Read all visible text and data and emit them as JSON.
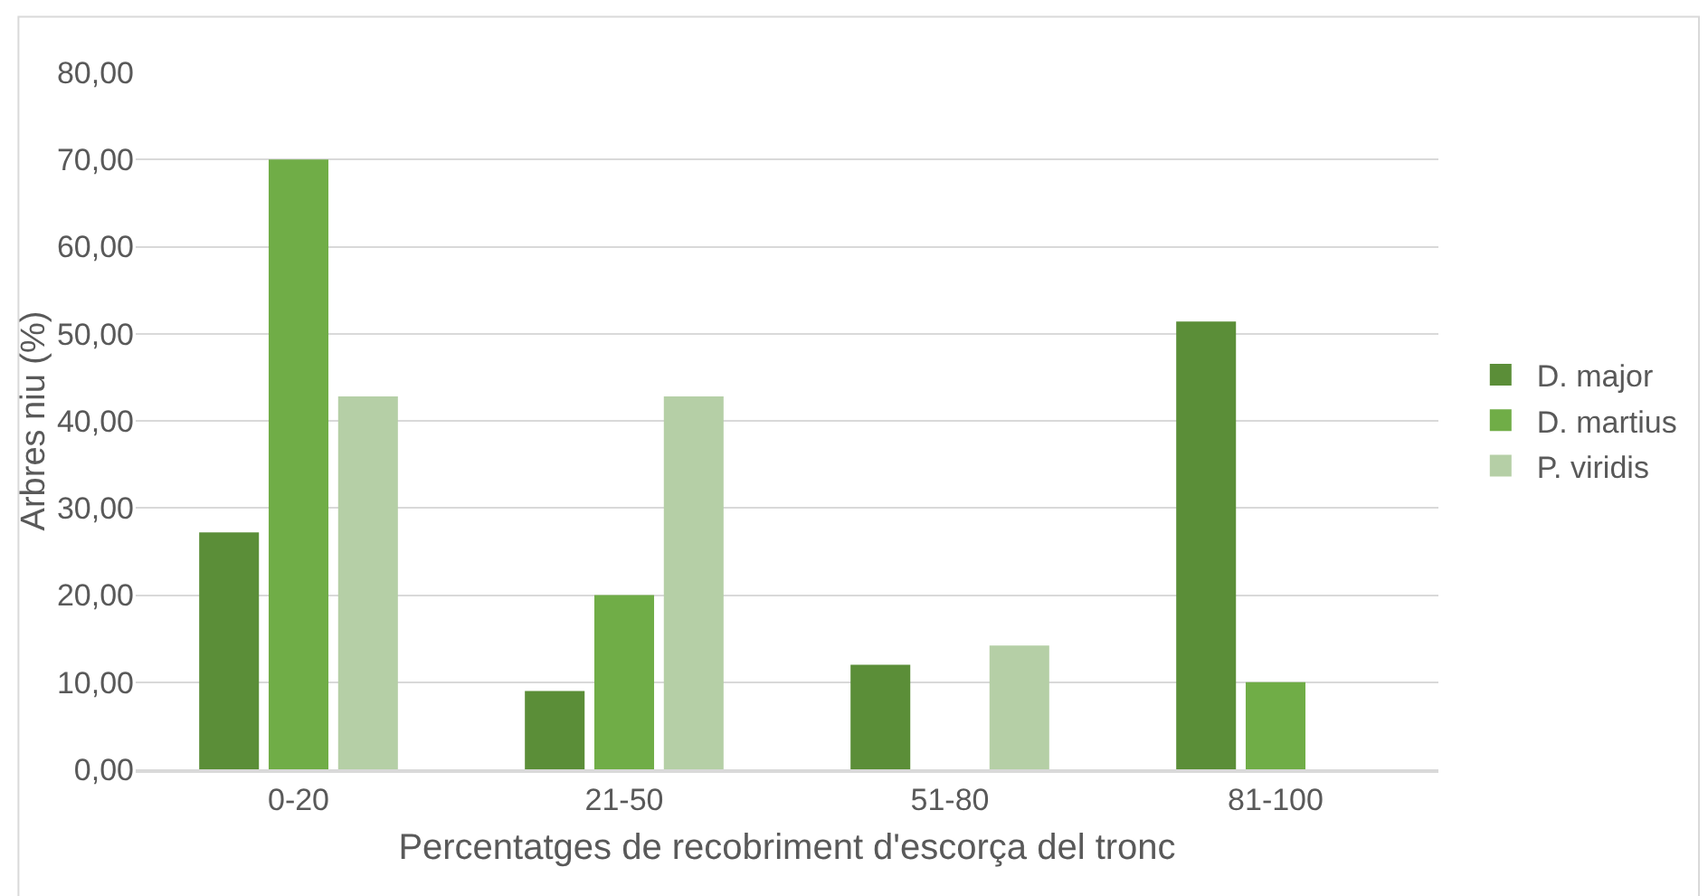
{
  "chart_data": {
    "type": "bar",
    "xlabel": "Percentatges de recobriment d'escorça del tronc",
    "ylabel": "Arbres niu (%)",
    "categories": [
      "0-20",
      "21-50",
      "51-80",
      "81-100"
    ],
    "series": [
      {
        "name": "D. major",
        "color": "#5b8e38",
        "values": [
          27.2,
          9.0,
          12.0,
          51.4
        ]
      },
      {
        "name": "D. martius",
        "color": "#70ad47",
        "values": [
          70,
          20,
          0,
          10
        ]
      },
      {
        "name": "P. viridis",
        "color": "#b5cfa6",
        "values": [
          42.8,
          42.8,
          14.2,
          0
        ]
      }
    ],
    "ylim": [
      0,
      80
    ],
    "yticks": [
      {
        "value": 0,
        "label": "0,00"
      },
      {
        "value": 10,
        "label": "10,00"
      },
      {
        "value": 20,
        "label": "20,00"
      },
      {
        "value": 30,
        "label": "30,00"
      },
      {
        "value": 40,
        "label": "40,00"
      },
      {
        "value": 50,
        "label": "50,00"
      },
      {
        "value": 60,
        "label": "60,00"
      },
      {
        "value": 70,
        "label": "70,00"
      },
      {
        "value": 80,
        "label": "80,00"
      }
    ],
    "grid": "y",
    "legend": "right"
  }
}
